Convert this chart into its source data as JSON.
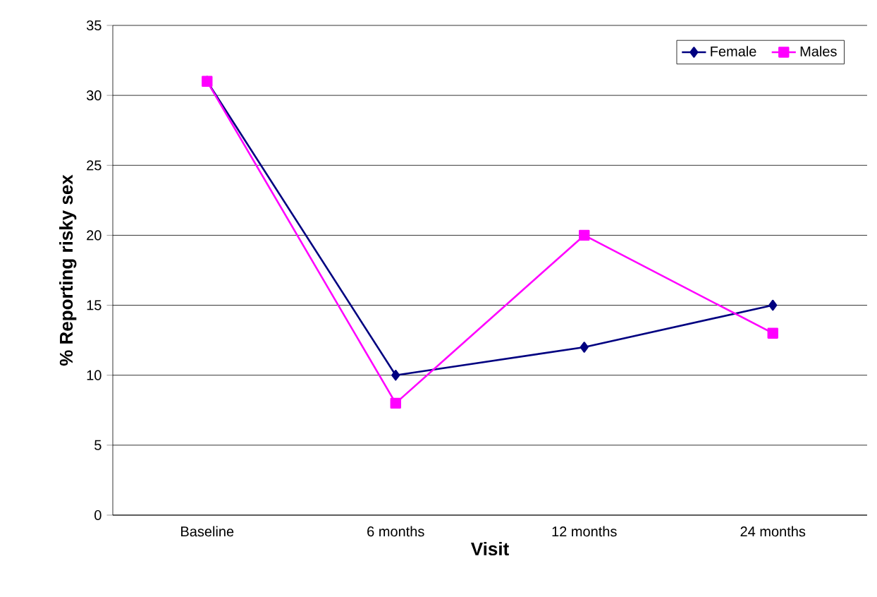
{
  "chart_data": {
    "type": "line",
    "xlabel": "Visit",
    "ylabel": "% Reporting risky sex",
    "categories": [
      "Baseline",
      "6 months",
      "12 months",
      "24 months"
    ],
    "series": [
      {
        "name": "Female",
        "color": "#000080",
        "marker": "diamond",
        "values": [
          31,
          10,
          12,
          15
        ]
      },
      {
        "name": "Males",
        "color": "#ff00ff",
        "marker": "square",
        "values": [
          31,
          8,
          20,
          13
        ]
      }
    ],
    "ylim": [
      0,
      35
    ],
    "yticks": [
      0,
      5,
      10,
      15,
      20,
      25,
      30,
      35
    ],
    "grid": "y",
    "legend": "top right",
    "line_style": "solid"
  }
}
